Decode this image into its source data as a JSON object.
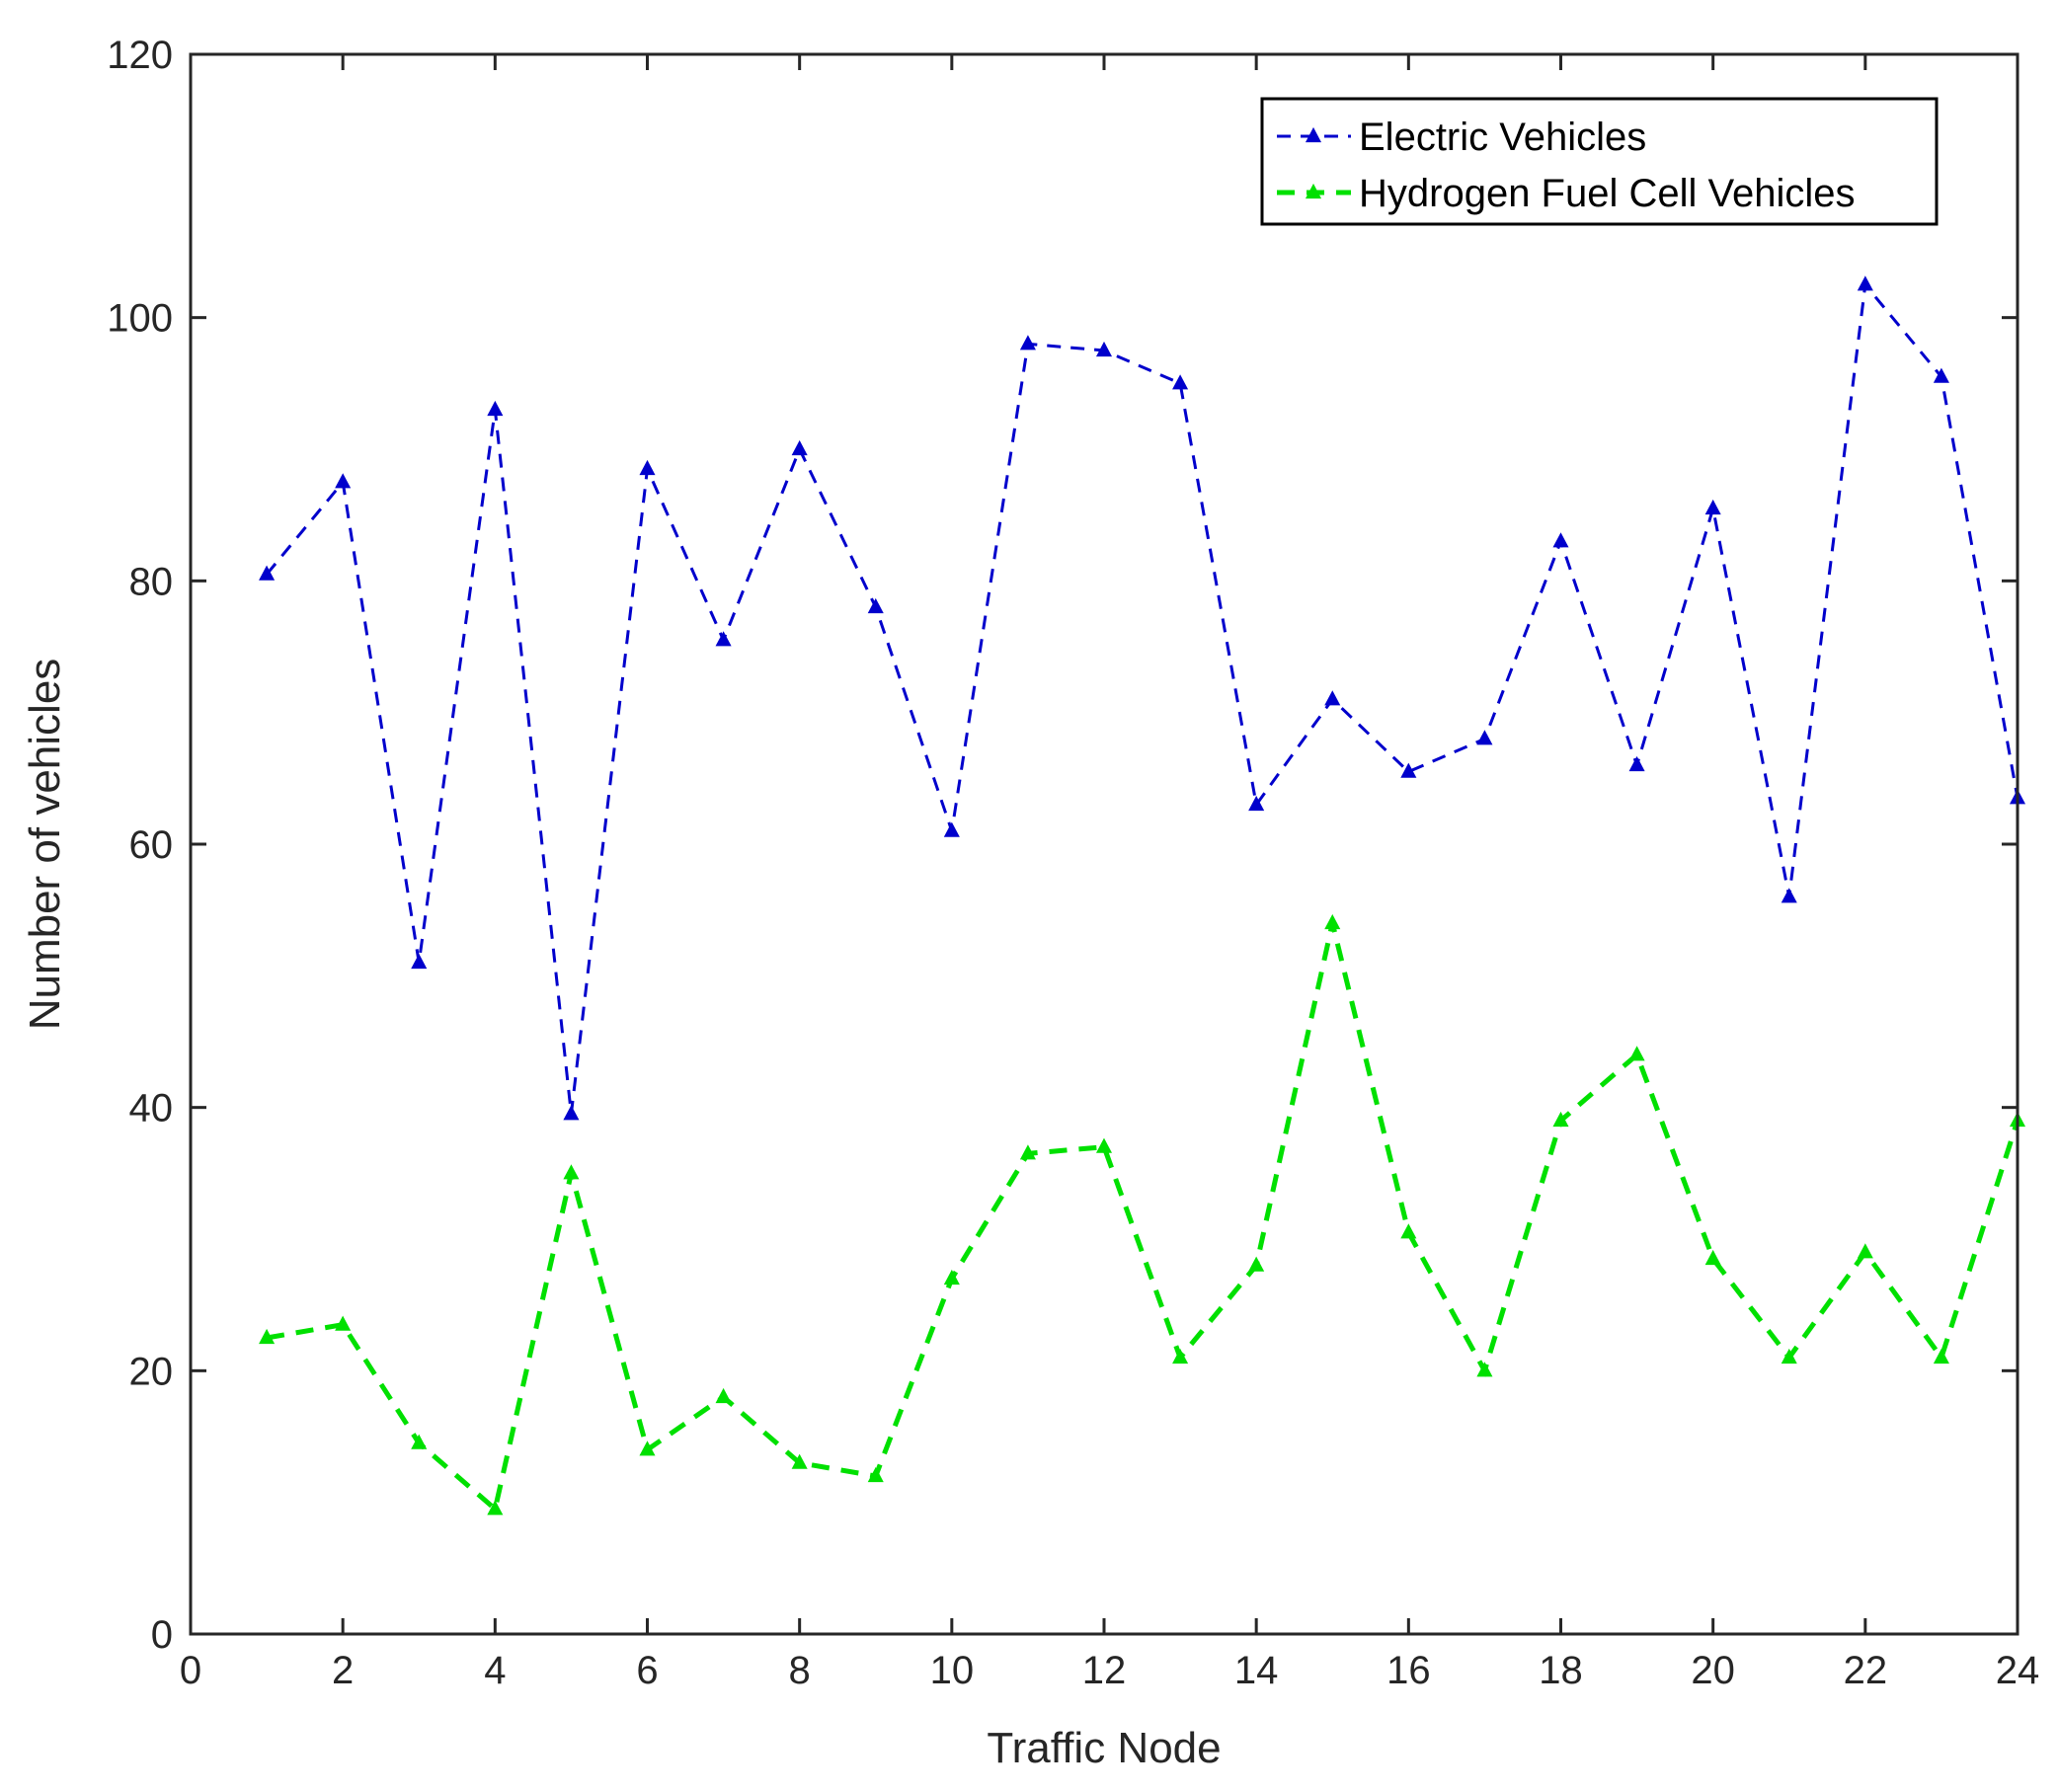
{
  "chart_data": {
    "type": "line",
    "title": "",
    "xlabel": "Traffic Node",
    "ylabel": "Number of vehicles",
    "xlim": [
      0,
      24
    ],
    "ylim": [
      0,
      120
    ],
    "xticks": [
      0,
      2,
      4,
      6,
      8,
      10,
      12,
      14,
      16,
      18,
      20,
      22,
      24
    ],
    "yticks": [
      0,
      20,
      40,
      60,
      80,
      100,
      120
    ],
    "grid": false,
    "legend_position": "top-right",
    "x": [
      1,
      2,
      3,
      4,
      5,
      6,
      7,
      8,
      9,
      10,
      11,
      12,
      13,
      14,
      15,
      16,
      17,
      18,
      19,
      20,
      21,
      22,
      23,
      24
    ],
    "series": [
      {
        "name": "Electric Vehicles",
        "color": "#0000cc",
        "line_style": "dashed",
        "marker": "triangle",
        "values": [
          80.5,
          87.5,
          51,
          93,
          39.5,
          88.5,
          75.5,
          90,
          78,
          61,
          98,
          97.5,
          95,
          63,
          71,
          65.5,
          68,
          83,
          66,
          85.5,
          56,
          102.5,
          95.5,
          63.5
        ]
      },
      {
        "name": "Hydrogen Fuel Cell Vehicles",
        "color": "#00e000",
        "line_style": "dashed",
        "marker": "triangle",
        "values": [
          22.5,
          23.5,
          14.5,
          9.5,
          35,
          14,
          18,
          13,
          12,
          27,
          36.5,
          37,
          21,
          28,
          54,
          30.5,
          20,
          39,
          44,
          28.5,
          21,
          29,
          21,
          39
        ]
      }
    ]
  }
}
